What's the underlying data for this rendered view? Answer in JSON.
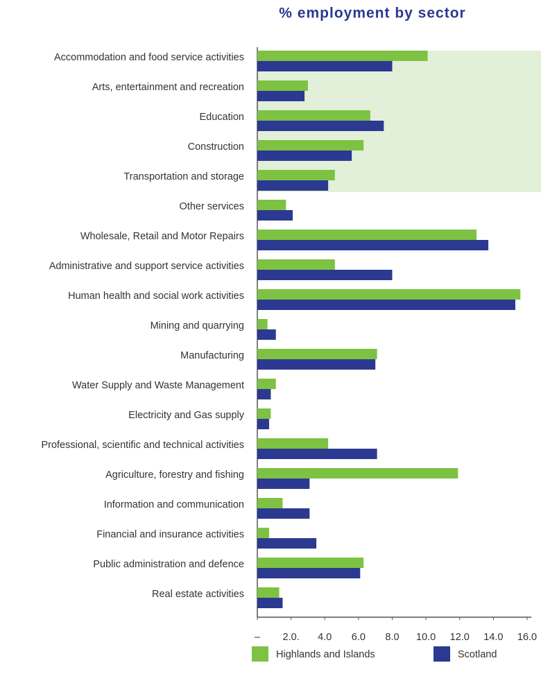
{
  "chart_data": {
    "type": "bar",
    "orientation": "horizontal",
    "title": "% employment by sector",
    "categories": [
      "Accommodation and food service activities",
      "Arts, entertainment and recreation",
      "Education",
      "Construction",
      "Transportation and storage",
      "Other services",
      "Wholesale, Retail and Motor Repairs",
      "Administrative and support service activities",
      "Human health and social work activities",
      "Mining and quarrying",
      "Manufacturing",
      "Water Supply and Waste Management",
      "Electricity and Gas supply",
      "Professional, scientific and technical activities",
      "Agriculture, forestry and fishing",
      "Information and communication",
      "Financial and insurance activities",
      "Public administration and defence",
      "Real estate activities"
    ],
    "series": [
      {
        "name": "Highlands and Islands",
        "color": "#7dc242",
        "values": [
          10.1,
          3.0,
          6.7,
          6.3,
          4.6,
          1.7,
          13.0,
          4.6,
          15.6,
          0.6,
          7.1,
          1.1,
          0.8,
          4.2,
          11.9,
          1.5,
          0.7,
          6.3,
          1.3
        ]
      },
      {
        "name": "Scotland",
        "color": "#2b3990",
        "values": [
          8.0,
          2.8,
          7.5,
          5.6,
          4.2,
          2.1,
          13.7,
          8.0,
          15.3,
          1.1,
          7.0,
          0.8,
          0.7,
          7.1,
          3.1,
          3.1,
          3.5,
          6.1,
          1.5
        ]
      }
    ],
    "xlim": [
      0,
      16
    ],
    "xticks": [
      {
        "value": 0,
        "label": "–"
      },
      {
        "value": 2,
        "label": "2.0."
      },
      {
        "value": 4,
        "label": "4.0"
      },
      {
        "value": 6,
        "label": "6.0"
      },
      {
        "value": 8,
        "label": "8.0"
      },
      {
        "value": 10,
        "label": "10.0"
      },
      {
        "value": 12,
        "label": "12.0"
      },
      {
        "value": 14,
        "label": "14.0"
      },
      {
        "value": 16,
        "label": "16.0"
      }
    ],
    "legend": "bottom"
  }
}
